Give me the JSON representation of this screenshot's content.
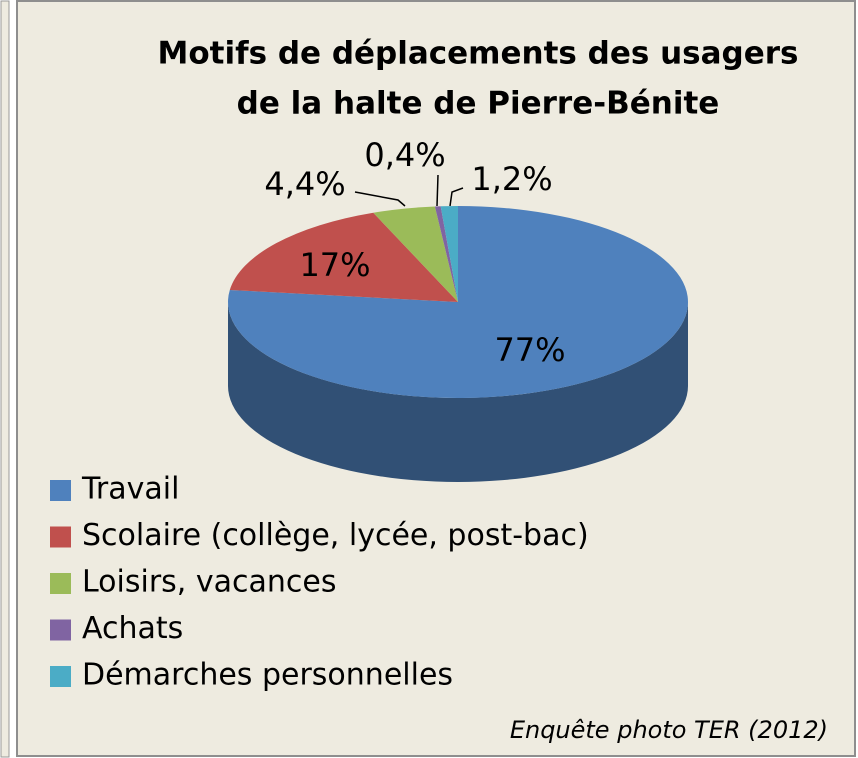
{
  "chart_data": {
    "type": "pie",
    "title": [
      "Motifs de déplacements des usagers",
      "de la halte de Pierre-Bénite"
    ],
    "categories": [
      "Travail",
      "Scolaire (collège, lycée, post-bac)",
      "Loisirs, vacances",
      "Achats",
      "Démarches personnelles"
    ],
    "values": [
      77,
      17,
      4.4,
      0.4,
      1.2
    ],
    "value_labels": [
      "77%",
      "17%",
      "4,4%",
      "0,4%",
      "1,2%"
    ],
    "colors": [
      "#4f81bd",
      "#c0504d",
      "#9bbb59",
      "#8064a2",
      "#4bacc6"
    ],
    "legend": "bottom-left",
    "source": "Enquête photo TER (2012)"
  }
}
